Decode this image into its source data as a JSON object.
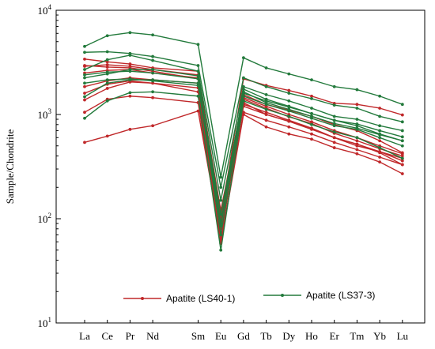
{
  "chart_data": {
    "type": "line",
    "title": "",
    "xlabel": "",
    "ylabel": "Sample/Chondrite",
    "y_scale": "log",
    "ylim": [
      10,
      10000
    ],
    "y_ticks": [
      {
        "value": 10,
        "base": "10",
        "exp": "1"
      },
      {
        "value": 100,
        "base": "10",
        "exp": "2"
      },
      {
        "value": 1000,
        "base": "10",
        "exp": "3"
      },
      {
        "value": 10000,
        "base": "10",
        "exp": "4"
      }
    ],
    "categories": [
      "La",
      "Ce",
      "Pr",
      "Nd",
      "Sm",
      "Eu",
      "Gd",
      "Tb",
      "Dy",
      "Ho",
      "Er",
      "Tm",
      "Yb",
      "Lu"
    ],
    "category_slots": [
      0,
      1,
      2,
      3,
      5,
      6,
      7,
      8,
      9,
      10,
      11,
      12,
      13,
      14
    ],
    "grid": false,
    "legend_position": "bottom",
    "groups": [
      {
        "name": "Apatite (LS40-1)",
        "color": "#c0282a",
        "series": [
          [
            3400,
            3200,
            3050,
            2800,
            2600,
            95,
            1300,
            1000,
            860,
            730,
            600,
            520,
            430,
            330
          ],
          [
            2950,
            2850,
            2800,
            2600,
            2200,
            80,
            1250,
            1050,
            880,
            740,
            600,
            500,
            440,
            380
          ],
          [
            2500,
            2650,
            2700,
            2500,
            2250,
            120,
            1450,
            1200,
            1000,
            850,
            700,
            600,
            500,
            420
          ],
          [
            1850,
            2100,
            2250,
            2150,
            2000,
            110,
            1400,
            1150,
            950,
            820,
            660,
            560,
            470,
            400
          ],
          [
            1600,
            1950,
            2100,
            2000,
            1800,
            70,
            1200,
            1000,
            860,
            720,
            600,
            520,
            440,
            360
          ],
          [
            1380,
            1780,
            2050,
            2000,
            1650,
            60,
            1050,
            880,
            760,
            650,
            540,
            460,
            390,
            330
          ],
          [
            1050,
            1400,
            1500,
            1450,
            1300,
            58,
            1000,
            760,
            650,
            580,
            480,
            420,
            350,
            270
          ],
          [
            540,
            620,
            720,
            780,
            1080,
            65,
            1550,
            1250,
            1100,
            960,
            800,
            700,
            560,
            430
          ],
          [
            2900,
            3000,
            2900,
            2700,
            2400,
            100,
            2200,
            1900,
            1700,
            1500,
            1280,
            1250,
            1150,
            990
          ]
        ]
      },
      {
        "name": "Apatite (LS37-3)",
        "color": "#237a3c",
        "series": [
          [
            4500,
            5700,
            6100,
            5800,
            4700,
            250,
            3500,
            2800,
            2450,
            2150,
            1850,
            1730,
            1500,
            1250
          ],
          [
            3950,
            4000,
            3850,
            3600,
            2950,
            200,
            2250,
            1850,
            1600,
            1420,
            1230,
            1150,
            960,
            850
          ],
          [
            2700,
            3350,
            3700,
            3300,
            2600,
            150,
            1850,
            1550,
            1350,
            1150,
            960,
            900,
            780,
            700
          ],
          [
            2400,
            2550,
            2600,
            2500,
            2200,
            110,
            1600,
            1350,
            1180,
            1020,
            880,
            810,
            700,
            610
          ],
          [
            2250,
            2450,
            2700,
            2700,
            2350,
            90,
            1750,
            1400,
            1200,
            1020,
            880,
            780,
            650,
            560
          ],
          [
            1480,
            2000,
            2150,
            2150,
            2000,
            70,
            1500,
            1250,
            1080,
            920,
            780,
            720,
            600,
            500
          ],
          [
            920,
            1350,
            1620,
            1650,
            1500,
            50,
            1350,
            1120,
            960,
            800,
            680,
            600,
            480,
            380
          ],
          [
            2000,
            2150,
            2200,
            2100,
            1900,
            85,
            1650,
            1300,
            1120,
            960,
            820,
            740,
            640,
            560
          ]
        ]
      }
    ]
  }
}
